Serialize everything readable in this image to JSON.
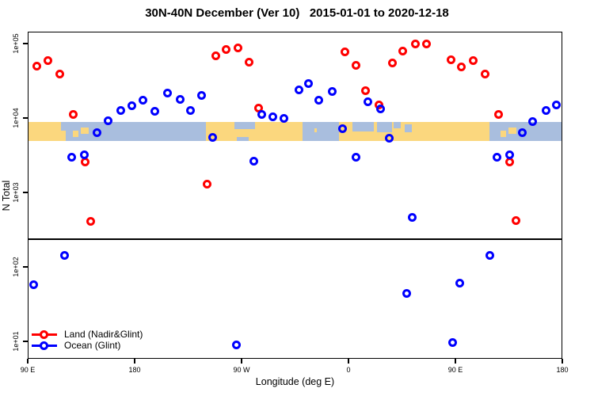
{
  "title": "30N-40N December (Ver 10)   2015-01-01 to 2020-12-18",
  "chart_data": {
    "type": "scatter",
    "title": "30N-40N December (Ver 10)   2015-01-01 to 2020-12-18",
    "xlabel": "Longitude (deg E)",
    "ylabel": "N Total",
    "y_scale": "log",
    "x_axis": {
      "range": [
        90,
        540
      ],
      "ticks": [
        {
          "pos": 90,
          "label": "90 E"
        },
        {
          "pos": 180,
          "label": "180"
        },
        {
          "pos": 270,
          "label": "90 W"
        },
        {
          "pos": 360,
          "label": "0"
        },
        {
          "pos": 450,
          "label": "90 E"
        },
        {
          "pos": 540,
          "label": "180"
        }
      ]
    },
    "y_axis": {
      "range": [
        8,
        200000
      ],
      "ticks": [
        {
          "value": 10,
          "label": "1e+01"
        },
        {
          "value": 100,
          "label": "1e+02"
        },
        {
          "value": 1000,
          "label": "1e+03"
        },
        {
          "value": 10000,
          "label": "1e+04"
        },
        {
          "value": 100000,
          "label": "1e+05"
        }
      ]
    },
    "reference_line_value": 235,
    "map_band": {
      "value_top": 8800,
      "value_bottom": 4950,
      "land_color": "#FBD77E",
      "ocean_color": "#A9BEDE",
      "land_segments": [
        {
          "s": 90,
          "e": 122,
          "t": 0,
          "b": 1
        },
        {
          "s": 128,
          "e": 132.5,
          "t": 0.45,
          "b": 0.8
        },
        {
          "s": 134.5,
          "e": 141.5,
          "t": 0.3,
          "b": 0.65
        },
        {
          "s": 240,
          "e": 321,
          "t": 0,
          "b": 1
        },
        {
          "s": 331,
          "e": 333.5,
          "t": 0.35,
          "b": 0.55
        },
        {
          "s": 352,
          "e": 478.5,
          "t": 0,
          "b": 1
        },
        {
          "s": 488,
          "e": 492.5,
          "t": 0.45,
          "b": 0.8
        },
        {
          "s": 494.5,
          "e": 501.5,
          "t": 0.3,
          "b": 0.65
        }
      ],
      "ocean_patches": [
        {
          "s": 118,
          "e": 122,
          "t": 0,
          "b": 0.45
        },
        {
          "s": 264,
          "e": 281,
          "t": 0,
          "b": 0.38
        },
        {
          "s": 266,
          "e": 276,
          "t": 0.8,
          "b": 1
        },
        {
          "s": 363,
          "e": 381,
          "t": 0,
          "b": 0.5
        },
        {
          "s": 384,
          "e": 396.5,
          "t": 0,
          "b": 0.55
        },
        {
          "s": 398,
          "e": 404,
          "t": 0,
          "b": 0.35
        },
        {
          "s": 407,
          "e": 413,
          "t": 0.1,
          "b": 0.55
        }
      ]
    },
    "series": [
      {
        "name": "Land (Nadir&Glint)",
        "color": "#FF0000",
        "marker": "open-circle",
        "points": [
          {
            "lon": 97.8,
            "n": 50000
          },
          {
            "lon": 107.3,
            "n": 59000
          },
          {
            "lon": 117.1,
            "n": 39000
          },
          {
            "lon": 128.2,
            "n": 11200
          },
          {
            "lon": 138.0,
            "n": 2540
          },
          {
            "lon": 143.1,
            "n": 410
          },
          {
            "lon": 241.3,
            "n": 1280
          },
          {
            "lon": 248.5,
            "n": 69000
          },
          {
            "lon": 256.7,
            "n": 83000
          },
          {
            "lon": 266.7,
            "n": 88000
          },
          {
            "lon": 276.2,
            "n": 56000
          },
          {
            "lon": 284.5,
            "n": 13700
          },
          {
            "lon": 357.3,
            "n": 77000
          },
          {
            "lon": 366.2,
            "n": 51500
          },
          {
            "lon": 374.2,
            "n": 23200
          },
          {
            "lon": 385.5,
            "n": 15000
          },
          {
            "lon": 397.3,
            "n": 54500
          },
          {
            "lon": 405.5,
            "n": 80000
          },
          {
            "lon": 416.2,
            "n": 100000
          },
          {
            "lon": 425.5,
            "n": 99000
          },
          {
            "lon": 446.2,
            "n": 61000
          },
          {
            "lon": 455.3,
            "n": 48000
          },
          {
            "lon": 464.7,
            "n": 59000
          },
          {
            "lon": 475.1,
            "n": 39000
          },
          {
            "lon": 486.0,
            "n": 11200
          },
          {
            "lon": 495.8,
            "n": 2580
          },
          {
            "lon": 501.3,
            "n": 415
          }
        ]
      },
      {
        "name": "Ocean (Glint)",
        "color": "#0000FF",
        "marker": "open-circle",
        "points": [
          {
            "lon": 94.9,
            "n": 58
          },
          {
            "lon": 121.1,
            "n": 142
          },
          {
            "lon": 126.7,
            "n": 3000
          },
          {
            "lon": 137.5,
            "n": 3170
          },
          {
            "lon": 148.2,
            "n": 6300
          },
          {
            "lon": 157.8,
            "n": 9100
          },
          {
            "lon": 168.2,
            "n": 12500
          },
          {
            "lon": 177.8,
            "n": 14500
          },
          {
            "lon": 187.3,
            "n": 17200
          },
          {
            "lon": 197.1,
            "n": 12300
          },
          {
            "lon": 207.8,
            "n": 21500
          },
          {
            "lon": 218.0,
            "n": 18000
          },
          {
            "lon": 226.9,
            "n": 12600
          },
          {
            "lon": 236.2,
            "n": 20300
          },
          {
            "lon": 245.5,
            "n": 5470
          },
          {
            "lon": 265.5,
            "n": 8.9
          },
          {
            "lon": 280.0,
            "n": 2620
          },
          {
            "lon": 287.3,
            "n": 11300
          },
          {
            "lon": 296.2,
            "n": 10300
          },
          {
            "lon": 305.5,
            "n": 10000
          },
          {
            "lon": 318.0,
            "n": 24000
          },
          {
            "lon": 326.5,
            "n": 29300
          },
          {
            "lon": 335.1,
            "n": 17500
          },
          {
            "lon": 346.5,
            "n": 22700
          },
          {
            "lon": 355.1,
            "n": 7100
          },
          {
            "lon": 366.0,
            "n": 3000
          },
          {
            "lon": 376.2,
            "n": 16400
          },
          {
            "lon": 386.7,
            "n": 13300
          },
          {
            "lon": 394.0,
            "n": 5300
          },
          {
            "lon": 408.9,
            "n": 43.5
          },
          {
            "lon": 413.5,
            "n": 464
          },
          {
            "lon": 447.8,
            "n": 9.7
          },
          {
            "lon": 453.5,
            "n": 60
          },
          {
            "lon": 479.1,
            "n": 142
          },
          {
            "lon": 484.9,
            "n": 3000
          },
          {
            "lon": 495.5,
            "n": 3170
          },
          {
            "lon": 506.0,
            "n": 6300
          },
          {
            "lon": 514.9,
            "n": 9000
          },
          {
            "lon": 526.2,
            "n": 12500
          },
          {
            "lon": 535.1,
            "n": 14800
          }
        ]
      }
    ],
    "legend": {
      "position": "bottom-left",
      "entries": [
        "Land (Nadir&Glint)",
        "Ocean (Glint)"
      ]
    }
  }
}
